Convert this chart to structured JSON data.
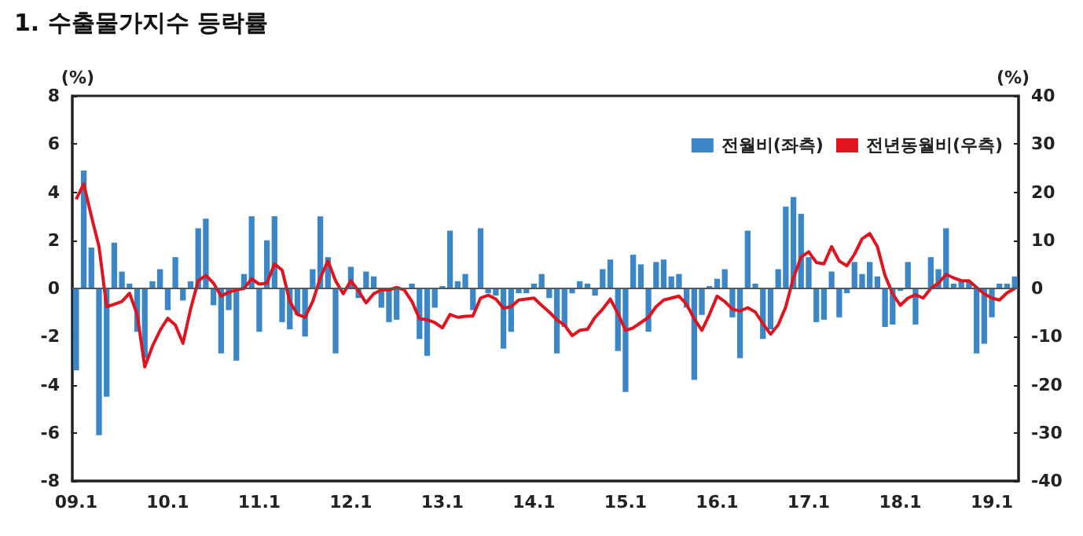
{
  "chart_data": {
    "type": "bar",
    "title": "1. 수출물가지수 등락률",
    "ylabel": "(%)",
    "y2label": "(%)",
    "categories": [
      "09.1",
      null,
      null,
      null,
      null,
      null,
      null,
      null,
      null,
      null,
      null,
      null,
      "10.1",
      null,
      null,
      null,
      null,
      null,
      null,
      null,
      null,
      null,
      null,
      null,
      "11.1",
      null,
      null,
      null,
      null,
      null,
      null,
      null,
      null,
      null,
      null,
      null,
      "12.1",
      null,
      null,
      null,
      null,
      null,
      null,
      null,
      null,
      null,
      null,
      null,
      "13.1",
      null,
      null,
      null,
      null,
      null,
      null,
      null,
      null,
      null,
      null,
      null,
      "14.1",
      null,
      null,
      null,
      null,
      null,
      null,
      null,
      null,
      null,
      null,
      null,
      "15.1",
      null,
      null,
      null,
      null,
      null,
      null,
      null,
      null,
      null,
      null,
      null,
      "16.1",
      null,
      null,
      null,
      null,
      null,
      null,
      null,
      null,
      null,
      null,
      null,
      "17.1",
      null,
      null,
      null,
      null,
      null,
      null,
      null,
      null,
      null,
      null,
      null,
      "18.1",
      null,
      null,
      null,
      null,
      null,
      null,
      null,
      null,
      null,
      null,
      null,
      "19.1",
      null,
      null,
      null
    ],
    "series": [
      {
        "name": "전월비(좌측)",
        "color": "#3b86c6",
        "values": [
          -3.4,
          4.9,
          1.7,
          -6.1,
          -4.5,
          1.9,
          0.7,
          0.2,
          -1.8,
          -2.9,
          0.3,
          0.8,
          -0.9,
          1.3,
          -0.5,
          0.3,
          2.5,
          2.9,
          -0.7,
          -2.7,
          -0.9,
          -3.0,
          0.6,
          3.0,
          -1.8,
          2.0,
          3.0,
          -1.4,
          -1.7,
          -1.1,
          -2.0,
          0.8,
          3.0,
          1.3,
          -2.7,
          0.0,
          0.9,
          -0.4,
          0.7,
          0.5,
          -0.8,
          -1.4,
          -1.3,
          0.0,
          0.2,
          -2.1,
          -2.8,
          -0.8,
          0.1,
          2.4,
          0.3,
          0.6,
          -0.9,
          2.5,
          -0.2,
          -0.3,
          -2.5,
          -1.8,
          -0.2,
          -0.2,
          0.2,
          0.6,
          -0.4,
          -2.7,
          -1.6,
          -0.2,
          0.3,
          0.2,
          -0.3,
          0.8,
          1.2,
          -2.6,
          -4.3,
          1.4,
          1.0,
          -1.8,
          1.1,
          1.2,
          0.5,
          0.6,
          -0.8,
          -3.8,
          -1.1,
          0.1,
          0.4,
          0.8,
          -1.2,
          -2.9,
          2.4,
          0.2,
          -2.1,
          -1.7,
          0.8,
          3.4,
          3.8,
          3.1,
          1.3,
          -1.4,
          -1.3,
          0.7,
          -1.2,
          -0.2,
          1.1,
          0.6,
          1.1,
          0.5,
          -1.6,
          -1.5,
          -0.1,
          1.1,
          -1.5,
          0.0,
          1.3,
          0.8,
          2.5,
          0.2,
          0.3,
          0.3,
          -2.7,
          -2.3,
          -1.2,
          0.2,
          0.2,
          0.5
        ]
      },
      {
        "name": "전년동월비(우측)",
        "type": "line",
        "axis": "y2",
        "color": "#e0141e",
        "values": [
          18.5,
          21.7,
          15,
          8.7,
          -3.8,
          -3.3,
          -2.7,
          -1,
          -5.4,
          -16.3,
          -12,
          -8.7,
          -6.2,
          -7.6,
          -11.4,
          -4.3,
          1.6,
          2.7,
          1.1,
          -1.6,
          -0.8,
          -0.3,
          0,
          2,
          0.9,
          1.1,
          5.1,
          3.8,
          -2.7,
          -5.4,
          -6,
          -2.7,
          2.2,
          5.7,
          1.6,
          -1.1,
          1.6,
          -0.5,
          -3,
          -1.1,
          -0.3,
          -0.3,
          0.2,
          -0.3,
          -2.7,
          -6.3,
          -6.5,
          -7.1,
          -8.2,
          -5.4,
          -6,
          -5.8,
          -5.7,
          -2,
          -1.4,
          -2.2,
          -4.1,
          -3.8,
          -2.4,
          -2.2,
          -2,
          -3.5,
          -4.9,
          -6.5,
          -7.6,
          -9.8,
          -8.7,
          -8.5,
          -6,
          -4.3,
          -2.2,
          -5.2,
          -8.7,
          -8.2,
          -7.1,
          -6,
          -3.8,
          -2.4,
          -2,
          -1.6,
          -3.3,
          -6.3,
          -8.7,
          -5.4,
          -1.6,
          -2.7,
          -4.3,
          -4.7,
          -4,
          -4.9,
          -7.3,
          -9.5,
          -7.6,
          -3.8,
          2.2,
          6.5,
          7.6,
          5.4,
          5.1,
          8.7,
          5.7,
          4.7,
          7.1,
          10.3,
          11.4,
          8.7,
          2.7,
          -1.1,
          -3.5,
          -2,
          -1.3,
          -2,
          0,
          1.1,
          2.9,
          2.2,
          1.6,
          1.6,
          0.2,
          -1.1,
          -2,
          -2.4,
          -0.9,
          0
        ]
      }
    ],
    "ylim": [
      -8,
      8
    ],
    "yticks": [
      -8,
      -6,
      -4,
      -2,
      0,
      2,
      4,
      6,
      8
    ],
    "y2lim": [
      -40,
      40
    ],
    "y2ticks": [
      -40,
      -30,
      -20,
      -10,
      0,
      10,
      20,
      30,
      40
    ],
    "legend": "top right",
    "marker": "none"
  }
}
